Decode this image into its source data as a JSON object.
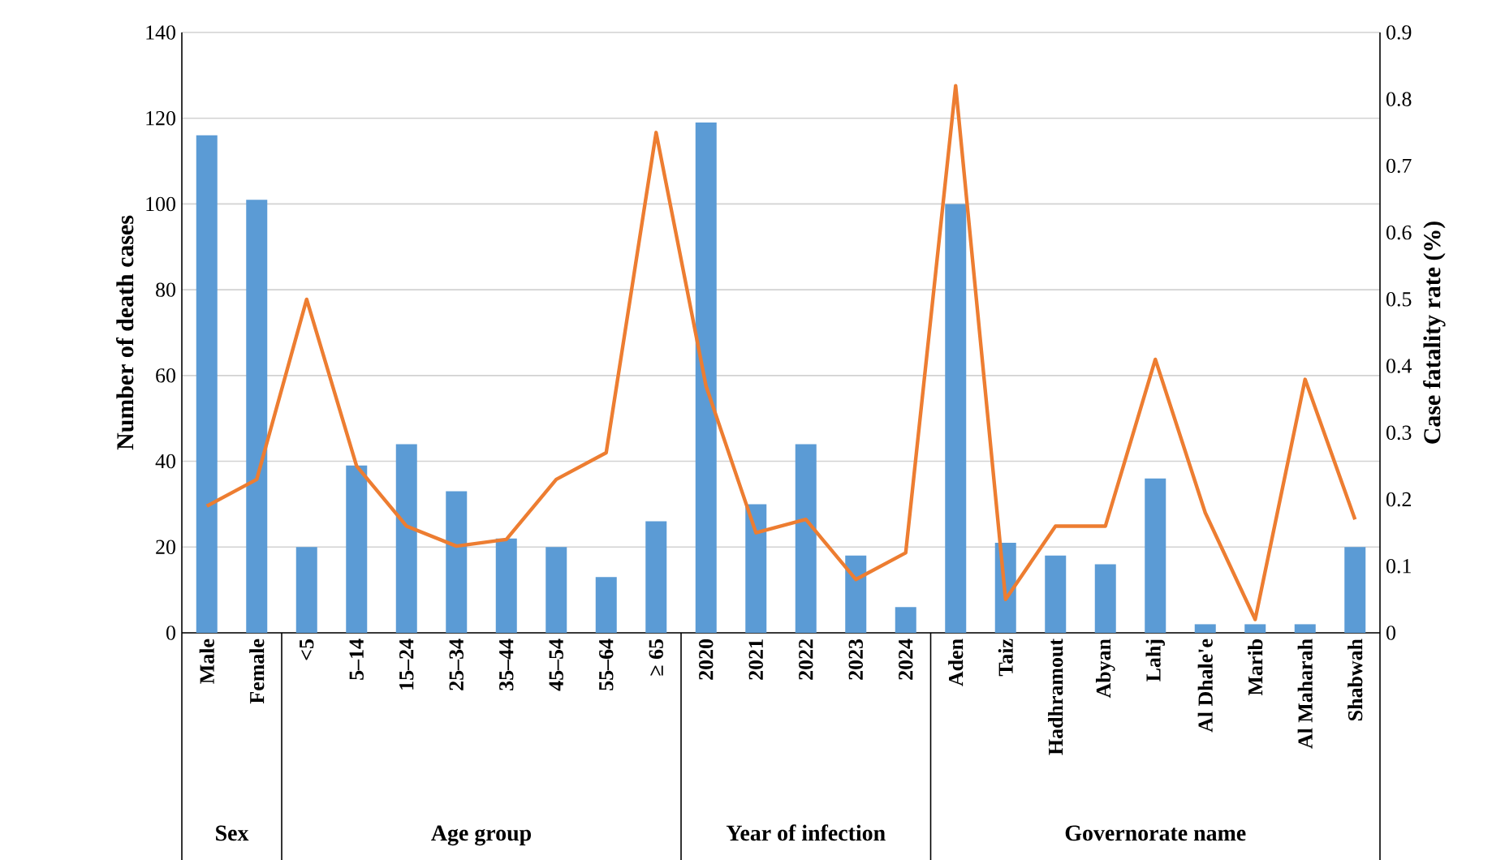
{
  "chart_data": {
    "type": "bar",
    "categories": [
      "Male",
      "Female",
      "<5",
      "5–14",
      "15–24",
      "25–34",
      "35–44",
      "45–54",
      "55–64",
      "≥ 65",
      "2020",
      "2021",
      "2022",
      "2023",
      "2024",
      "Aden",
      "Taiz",
      "Hadhramout",
      "Abyan",
      "Lahj",
      "Al Dhale'e",
      "Marib",
      "Al Maharah",
      "Shabwah"
    ],
    "series": [
      {
        "color": "#5b9bd5",
        "values": [
          116,
          101,
          20,
          39,
          44,
          33,
          22,
          20,
          13,
          26,
          119,
          30,
          44,
          18,
          6,
          100,
          21,
          18,
          16,
          36,
          2,
          2,
          2,
          20
        ]
      },
      {
        "type": "line",
        "axis": "y2",
        "color": "#ed7d31",
        "values": [
          0.19,
          0.23,
          0.5,
          0.25,
          0.16,
          0.13,
          0.14,
          0.23,
          0.27,
          0.75,
          0.37,
          0.15,
          0.17,
          0.08,
          0.12,
          0.82,
          0.05,
          0.16,
          0.16,
          0.41,
          0.18,
          0.02,
          0.38,
          0.17
        ]
      }
    ],
    "ylabel": "Number of death cases",
    "y2label": "Case fatality rate (%)",
    "ylim": [
      0,
      140
    ],
    "yticks": [
      0,
      20,
      40,
      60,
      80,
      100,
      120,
      140
    ],
    "y2lim": [
      0,
      0.9
    ],
    "y2ticks": [
      0,
      0.1,
      0.2,
      0.3,
      0.4,
      0.5,
      0.6,
      0.7,
      0.8,
      0.9
    ],
    "grid": "y",
    "marker": "none",
    "line_style": "solid",
    "annotations": [
      "Sex",
      "Age group",
      "Year of infection",
      "Governorate name"
    ]
  }
}
